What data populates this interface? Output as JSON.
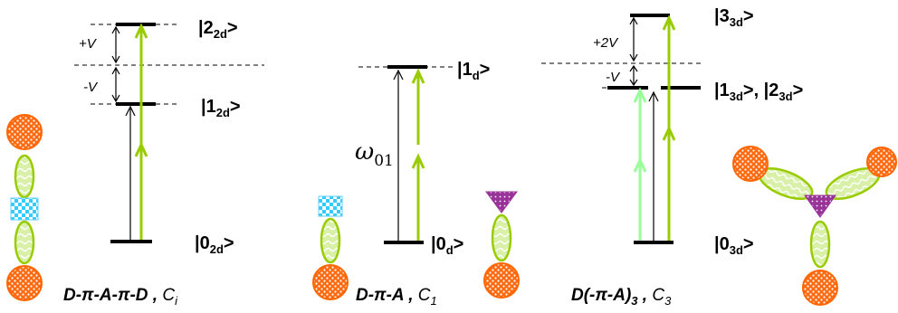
{
  "panel_left": {
    "state_top": {
      "main": "|2",
      "sub": "2d",
      "tail": ">"
    },
    "state_mid": {
      "main": "|1",
      "sub": "2d",
      "tail": ">"
    },
    "state_ground": {
      "main": "|0",
      "sub": "2d",
      "tail": ">"
    },
    "shift_up": "+V",
    "shift_down": "-V",
    "caption": {
      "formula": "D-π-A-π-D",
      "sep": " , ",
      "symmetry": "C",
      "symmetry_sub": "i"
    }
  },
  "panel_middle": {
    "state_excited": {
      "main": "|1",
      "sub": "d",
      "tail": ">"
    },
    "state_ground": {
      "main": "|0",
      "sub": "d",
      "tail": ">"
    },
    "transition_label": {
      "main": "ω",
      "sub": "01"
    },
    "caption": {
      "formula": "D-π-A",
      "sep": " , ",
      "symmetry": "C",
      "symmetry_sub": "1"
    }
  },
  "panel_right": {
    "state_top": {
      "main": "|3",
      "sub": "3d",
      "tail": ">"
    },
    "state_mid": {
      "main": "|1",
      "sub": "3d",
      "mid": ">, |2",
      "sub2": "3d",
      "tail": ">"
    },
    "state_ground": {
      "main": "|0",
      "sub": "3d",
      "tail": ">"
    },
    "shift_up": "+2V",
    "shift_down": "-V",
    "caption": {
      "formula": "D(-π-A)",
      "formula_sub": "3",
      "sep": " , ",
      "symmetry": "C",
      "symmetry_sub": "3"
    }
  },
  "colors": {
    "green_arrow": "#99cc00",
    "light_green_arrow": "#99ff99",
    "donor_orange": "#ff6600",
    "bridge_green": "#ccee99",
    "acceptor_blue": "#33ccff",
    "acceptor_purple": "#993399"
  }
}
